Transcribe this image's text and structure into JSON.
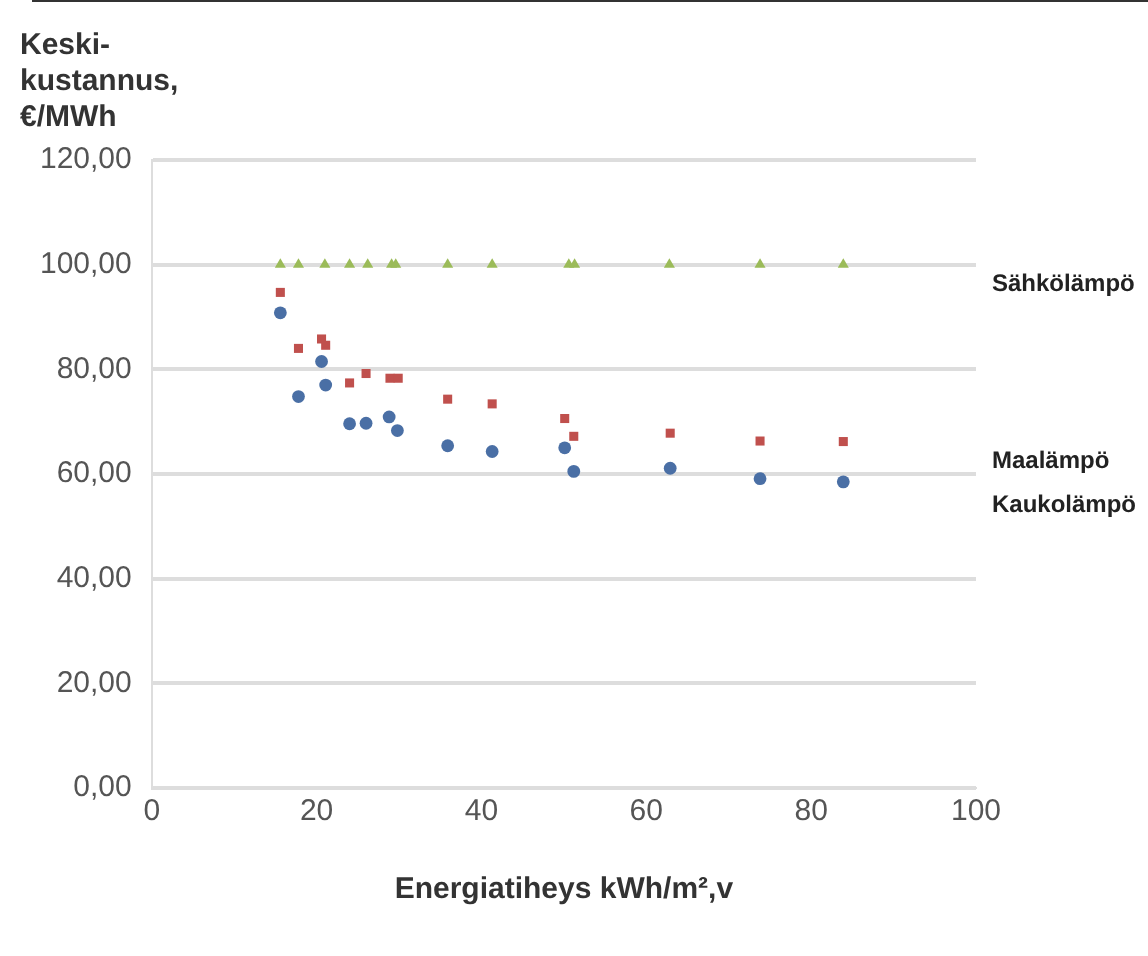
{
  "chart_data": {
    "type": "scatter",
    "ylabel": "Keski-\nkustannus,\n€/MWh",
    "xlabel": "Energiatiheys kWh/m²,v",
    "xlim": [
      0,
      100
    ],
    "xticks": [
      0,
      20,
      40,
      60,
      80,
      100
    ],
    "ylim": [
      0,
      120
    ],
    "yticks": [
      {
        "value": 0,
        "label": "0,00"
      },
      {
        "value": 20,
        "label": "20,00"
      },
      {
        "value": 40,
        "label": "40,00"
      },
      {
        "value": 60,
        "label": "60,00"
      },
      {
        "value": 80,
        "label": "80,00"
      },
      {
        "value": 100,
        "label": "100,00"
      },
      {
        "value": 120,
        "label": "120,00"
      }
    ],
    "grid": "y",
    "legend": false,
    "series": [
      {
        "name": "Sähkölämpö",
        "color": "#9bbb59",
        "marker": "triangle",
        "x": [
          15.6,
          17.8,
          21.0,
          24.0,
          26.2,
          29.1,
          29.6,
          35.9,
          41.3,
          50.6,
          51.3,
          62.8,
          73.8,
          83.9
        ],
        "values": [
          100,
          100,
          100,
          100,
          100,
          100,
          100,
          100,
          100,
          100,
          100,
          100,
          100,
          100
        ]
      },
      {
        "name": "Maalämpö",
        "color": "#c0504d",
        "marker": "square",
        "x": [
          15.6,
          17.8,
          20.6,
          21.1,
          24.0,
          26.0,
          28.9,
          29.9,
          35.9,
          41.3,
          50.1,
          51.2,
          62.9,
          73.8,
          83.9
        ],
        "values": [
          94.7,
          84.0,
          85.8,
          84.6,
          77.4,
          79.2,
          78.3,
          78.3,
          74.3,
          73.4,
          70.6,
          67.2,
          67.8,
          66.3,
          66.2
        ]
      },
      {
        "name": "Kaukolämpö",
        "color": "#4a6fa5",
        "marker": "circle",
        "x": [
          15.6,
          17.8,
          20.6,
          21.1,
          24.0,
          26.0,
          28.8,
          29.8,
          35.9,
          41.3,
          50.1,
          51.2,
          62.9,
          73.8,
          83.9
        ],
        "values": [
          90.8,
          74.8,
          81.5,
          77.0,
          69.6,
          69.7,
          70.9,
          68.3,
          65.4,
          64.3,
          65.0,
          60.5,
          61.1,
          59.1,
          58.5
        ]
      }
    ]
  }
}
